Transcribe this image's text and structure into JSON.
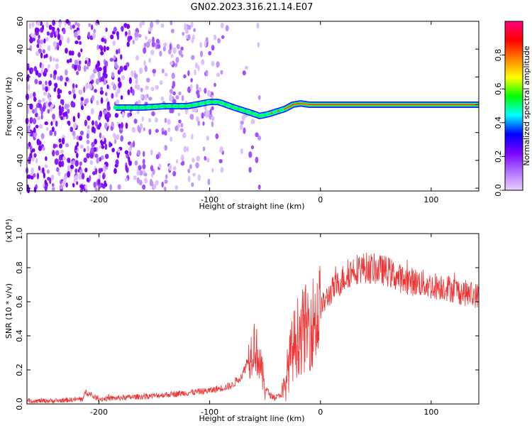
{
  "title": "GN02.2023.316.21.14.E07",
  "spectrogram": {
    "type": "heatmap",
    "xlabel": "Height of straight line (km)",
    "ylabel": "Frequency (Hz)",
    "xlim": [
      -265,
      143
    ],
    "ylim": [
      -62,
      60
    ],
    "xticks": [
      -200,
      -100,
      0,
      100
    ],
    "yticks": [
      -60,
      -40,
      -20,
      0,
      20,
      40,
      60
    ],
    "colorbar": {
      "label": "Normalized spectral amplitude",
      "range": [
        0,
        1
      ],
      "ticks": [
        "0.0",
        "0.2",
        "0.4",
        "0.6",
        "0.8"
      ],
      "colors": [
        "#e8d0ff",
        "#b070ff",
        "#7a00ff",
        "#0000ff",
        "#00ffff",
        "#00ff00",
        "#ffff00",
        "#ff8000",
        "#ff0000",
        "#ff0080"
      ]
    },
    "ridge": {
      "x": [
        -185,
        -160,
        -140,
        -120,
        -100,
        -92,
        -85,
        -78,
        -70,
        -62,
        -55,
        -48,
        -40,
        -32,
        -25,
        -18,
        -10,
        0,
        40,
        80,
        143
      ],
      "freq": [
        -2,
        -2,
        -1,
        -1,
        2,
        2,
        0,
        -2,
        -4,
        -6,
        -8,
        -7,
        -5,
        -3,
        0,
        1,
        0,
        0,
        0,
        0,
        0
      ]
    }
  },
  "snr": {
    "type": "line",
    "xlabel": "Height of straight line (km)",
    "ylabel": "SNR (10 * v/v)",
    "multiplier": "(x10⁴)",
    "xlim": [
      -265,
      143
    ],
    "ylim": [
      0,
      1.0
    ],
    "xticks": [
      -200,
      -100,
      0,
      100
    ],
    "yticks": [
      "0.0",
      "0.2",
      "0.4",
      "0.6",
      "0.8",
      "1.0"
    ],
    "color": "#f03232",
    "envelope": {
      "x": [
        -265,
        -240,
        -215,
        -212,
        -200,
        -150,
        -100,
        -80,
        -70,
        -62,
        -60,
        -55,
        -50,
        -45,
        -40,
        -35,
        -32,
        -30,
        -25,
        -20,
        -15,
        -10,
        -5,
        0,
        5,
        10,
        20,
        30,
        40,
        50,
        60,
        70,
        80,
        90,
        100,
        110,
        120,
        130,
        143
      ],
      "y": [
        0.02,
        0.02,
        0.03,
        0.07,
        0.03,
        0.05,
        0.08,
        0.11,
        0.18,
        0.33,
        0.38,
        0.26,
        0.1,
        0.05,
        0.04,
        0.06,
        0.1,
        0.2,
        0.35,
        0.43,
        0.46,
        0.49,
        0.53,
        0.57,
        0.62,
        0.67,
        0.74,
        0.8,
        0.81,
        0.8,
        0.79,
        0.75,
        0.73,
        0.72,
        0.7,
        0.7,
        0.68,
        0.66,
        0.64
      ]
    }
  }
}
